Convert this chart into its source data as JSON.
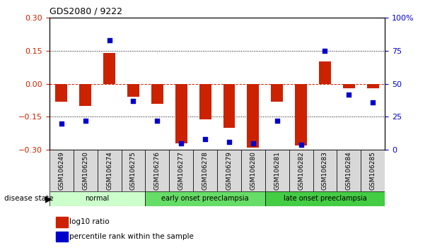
{
  "title": "GDS2080 / 9222",
  "samples": [
    "GSM106249",
    "GSM106250",
    "GSM106274",
    "GSM106275",
    "GSM106276",
    "GSM106277",
    "GSM106278",
    "GSM106279",
    "GSM106280",
    "GSM106281",
    "GSM106282",
    "GSM106283",
    "GSM106284",
    "GSM106285"
  ],
  "log10_ratio": [
    -0.08,
    -0.1,
    0.14,
    -0.06,
    -0.09,
    -0.27,
    -0.16,
    -0.2,
    -0.29,
    -0.08,
    -0.28,
    0.1,
    -0.02,
    -0.02
  ],
  "percentile_rank": [
    20,
    22,
    83,
    37,
    22,
    5,
    8,
    6,
    5,
    22,
    4,
    75,
    42,
    36
  ],
  "groups": [
    {
      "label": "normal",
      "start": 0,
      "end": 4,
      "color": "#ccffcc"
    },
    {
      "label": "early onset preeclampsia",
      "start": 4,
      "end": 9,
      "color": "#66dd66"
    },
    {
      "label": "late onset preeclampsia",
      "start": 9,
      "end": 14,
      "color": "#44cc44"
    }
  ],
  "ylim_left": [
    -0.3,
    0.3
  ],
  "ylim_right": [
    0,
    100
  ],
  "yticks_left": [
    -0.3,
    -0.15,
    0,
    0.15,
    0.3
  ],
  "yticks_right": [
    0,
    25,
    50,
    75,
    100
  ],
  "bar_color": "#cc2200",
  "dot_color": "#0000cc",
  "zero_line_color": "#cc2200",
  "grid_color": "#000000",
  "bg_color": "#ffffff",
  "tick_gray": "#c0c0c0",
  "xticklabel_bg": "#d8d8d8"
}
